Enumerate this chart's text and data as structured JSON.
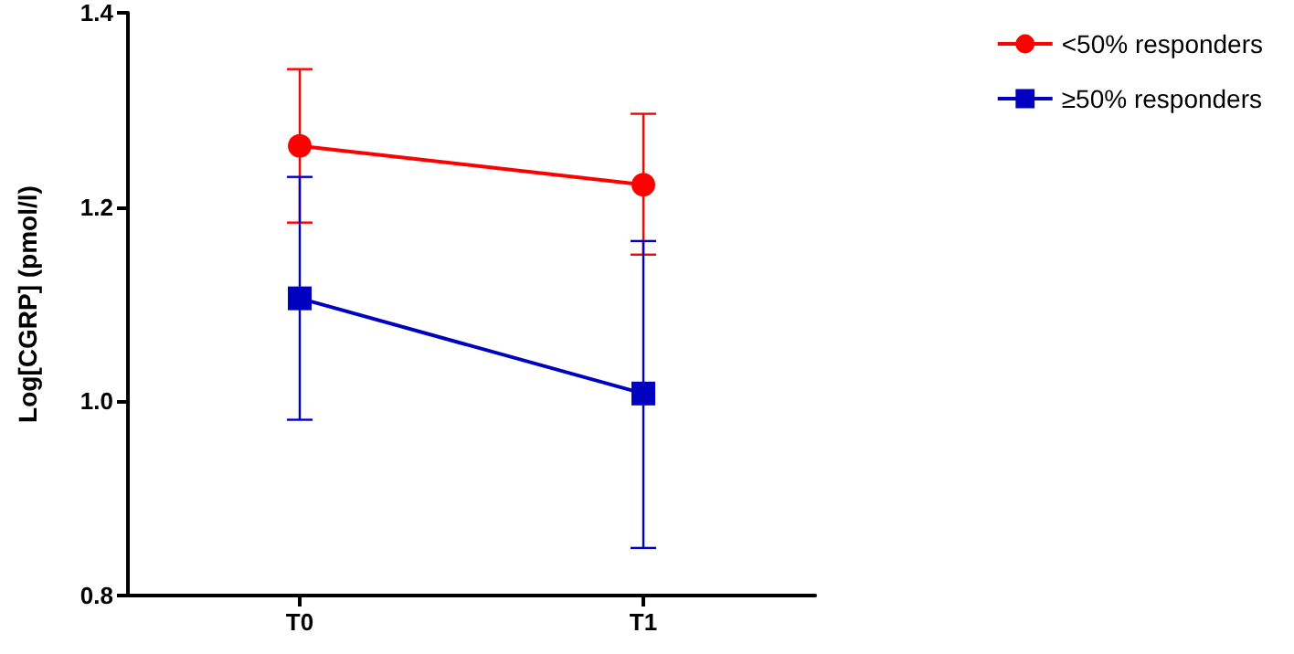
{
  "chart_data": {
    "type": "line",
    "ylabel": "Log[CGRP] (pmol/l)",
    "categories": [
      "T0",
      "T1"
    ],
    "series": [
      {
        "name": "<50% responders",
        "color": "#ff0000",
        "marker": "circle",
        "values": [
          1.263,
          1.223
        ],
        "errors": [
          [
            1.184,
            1.342
          ],
          [
            1.151,
            1.296
          ]
        ]
      },
      {
        "name": "≥50% responders",
        "color": "#0000c0",
        "marker": "square",
        "values": [
          1.106,
          1.008
        ],
        "errors": [
          [
            0.981,
            1.231
          ],
          [
            0.849,
            1.165
          ]
        ]
      }
    ],
    "ylim": [
      0.8,
      1.4
    ],
    "yticks": [
      0.8,
      {
        "value": 1,
        "label": "1.0"
      },
      1.2,
      1.4
    ],
    "grid": false,
    "legend": "top right"
  }
}
